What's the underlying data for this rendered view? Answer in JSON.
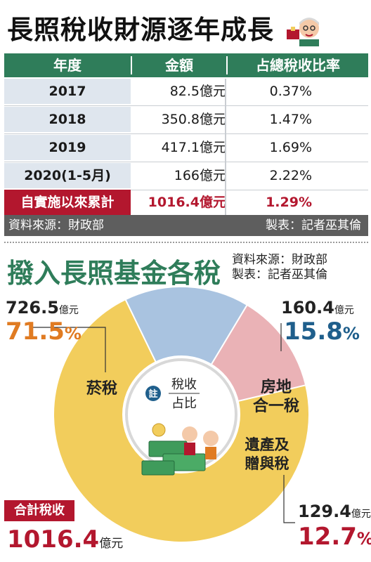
{
  "title": "長照稅收財源逐年成長",
  "table": {
    "headers": [
      "年度",
      "金額",
      "占總稅收比率"
    ],
    "rows": [
      {
        "year": "2017",
        "amount": "82.5億元",
        "ratio": "0.37%"
      },
      {
        "year": "2018",
        "amount": "350.8億元",
        "ratio": "1.47%"
      },
      {
        "year": "2019",
        "amount": "417.1億元",
        "ratio": "1.69%"
      },
      {
        "year": "2020(1-5月)",
        "amount": "166億元",
        "ratio": "2.22%"
      }
    ],
    "total": {
      "label": "自實施以來累計",
      "amount": "1016.4億元",
      "ratio": "1.29%"
    }
  },
  "table_source": "資料來源：財政部",
  "table_maker": "製表：記者巫其倫",
  "chart_title": "撥入長照基金各稅",
  "chart_source": "資料來源：財政部",
  "chart_maker": "製表：記者巫其倫",
  "center_badge": "註",
  "center_text": [
    "稅收",
    "占比"
  ],
  "total_label": "合計稅收",
  "total_value": "1016.4",
  "total_unit": "億元",
  "unit": "億元",
  "pct_sign": "%",
  "colors": {
    "green": "#2f7d5a",
    "red": "#b3172e",
    "tobacco": "#f2cd5c",
    "realestate": "#a9c3e0",
    "estate": "#eab2b6",
    "pct_tobacco": "#e07b22",
    "pct_realestate": "#1f5f8c",
    "pct_estate": "#b3172e"
  },
  "chart_data": {
    "type": "pie",
    "title": "撥入長照基金各稅",
    "series": [
      {
        "name": "菸稅",
        "amount": "726.5",
        "percent": "71.5",
        "value": 71.5
      },
      {
        "name": "房地合一稅",
        "amount": "160.4",
        "percent": "15.8",
        "value": 15.8
      },
      {
        "name": "遺產及贈與稅",
        "amount": "129.4",
        "percent": "12.7",
        "value": 12.7
      }
    ],
    "total": 1016.4,
    "unit": "億元"
  }
}
